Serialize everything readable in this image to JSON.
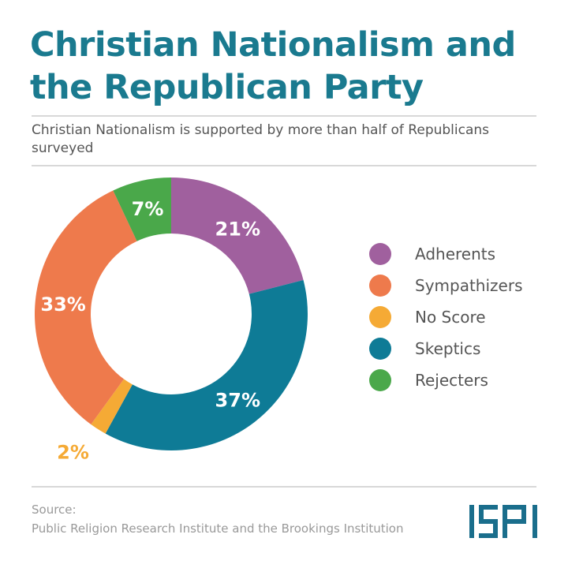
{
  "header": {
    "title": "Christian Nationalism and the Republican Party",
    "subtitle": "Christian Nationalism is supported by more than half of Republicans surveyed"
  },
  "chart_data": {
    "type": "pie",
    "variant": "donut",
    "title": "Christian Nationalism and the Republican Party",
    "start": "top",
    "direction": "clockwise",
    "slices": [
      {
        "name": "Adherents",
        "value": 21,
        "label": "21%",
        "color": "#a0609e",
        "label_color": "#ffffff"
      },
      {
        "name": "Skeptics",
        "value": 37,
        "label": "37%",
        "color": "#0e7b96",
        "label_color": "#ffffff"
      },
      {
        "name": "No Score",
        "value": 2,
        "label": "2%",
        "color": "#f5aa35",
        "label_color": "#f5aa35"
      },
      {
        "name": "Sympathizers",
        "value": 33,
        "label": "33%",
        "color": "#ee7a4c",
        "label_color": "#ffffff"
      },
      {
        "name": "Rejecters",
        "value": 7,
        "label": "7%",
        "color": "#4aa84a",
        "label_color": "#ffffff"
      }
    ],
    "legend": {
      "placement": "right",
      "entries": [
        "Adherents",
        "Sympathizers",
        "No Score",
        "Skeptics",
        "Rejecters"
      ],
      "colors": [
        "#a0609e",
        "#ee7a4c",
        "#f5aa35",
        "#0e7b96",
        "#4aa84a"
      ]
    }
  },
  "footer": {
    "source_label": "Source:",
    "source_text": "Public Religion Research Institute and the Brookings Institution",
    "logo": "ISPI"
  }
}
